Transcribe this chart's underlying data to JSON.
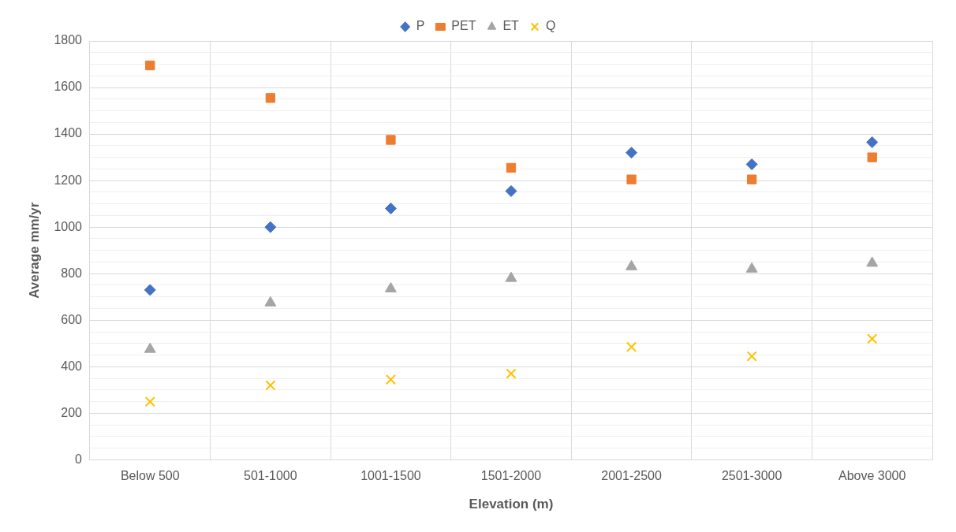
{
  "chart_data": {
    "type": "scatter",
    "xlabel": "Elevation (m)",
    "ylabel": "Average mm/yr",
    "categories": [
      "Below 500",
      "501-1000",
      "1001-1500",
      "1501-2000",
      "2001-2500",
      "2501-3000",
      "Above 3000"
    ],
    "series": [
      {
        "name": "P",
        "color": "#4472c4",
        "marker": "diamond",
        "values": [
          730,
          1000,
          1080,
          1155,
          1320,
          1270,
          1365
        ]
      },
      {
        "name": "PET",
        "color": "#ed7d31",
        "marker": "square",
        "values": [
          1695,
          1555,
          1375,
          1255,
          1205,
          1205,
          1300
        ]
      },
      {
        "name": "ET",
        "color": "#a5a5a5",
        "marker": "triangle",
        "values": [
          475,
          675,
          735,
          780,
          830,
          820,
          845
        ]
      },
      {
        "name": "Q",
        "color": "#ffc000",
        "marker": "cross",
        "values": [
          250,
          320,
          345,
          370,
          485,
          445,
          520
        ]
      }
    ],
    "ylim": [
      0,
      1800
    ],
    "yticks": [
      0,
      {
        "value": 50,
        "label": null
      },
      {
        "value": 100,
        "label": null
      },
      {
        "value": 150,
        "label": null
      },
      200,
      {
        "value": 250,
        "label": null
      },
      {
        "value": 300,
        "label": null
      },
      {
        "value": 350,
        "label": null
      },
      400,
      {
        "value": 450,
        "label": null
      },
      {
        "value": 500,
        "label": null
      },
      {
        "value": 550,
        "label": null
      },
      600,
      {
        "value": 650,
        "label": null
      },
      {
        "value": 700,
        "label": null
      },
      {
        "value": 750,
        "label": null
      },
      800,
      {
        "value": 850,
        "label": null
      },
      {
        "value": 900,
        "label": null
      },
      {
        "value": 950,
        "label": null
      },
      1000,
      {
        "value": 1050,
        "label": null
      },
      {
        "value": 1100,
        "label": null
      },
      {
        "value": 1150,
        "label": null
      },
      1200,
      {
        "value": 1250,
        "label": null
      },
      {
        "value": 1300,
        "label": null
      },
      {
        "value": 1350,
        "label": null
      },
      1400,
      {
        "value": 1450,
        "label": null
      },
      {
        "value": 1500,
        "label": null
      },
      {
        "value": 1550,
        "label": null
      },
      1600,
      {
        "value": 1650,
        "label": null
      },
      {
        "value": 1700,
        "label": null
      },
      {
        "value": 1750,
        "label": null
      },
      1800
    ],
    "grid": true,
    "legend": "top"
  }
}
